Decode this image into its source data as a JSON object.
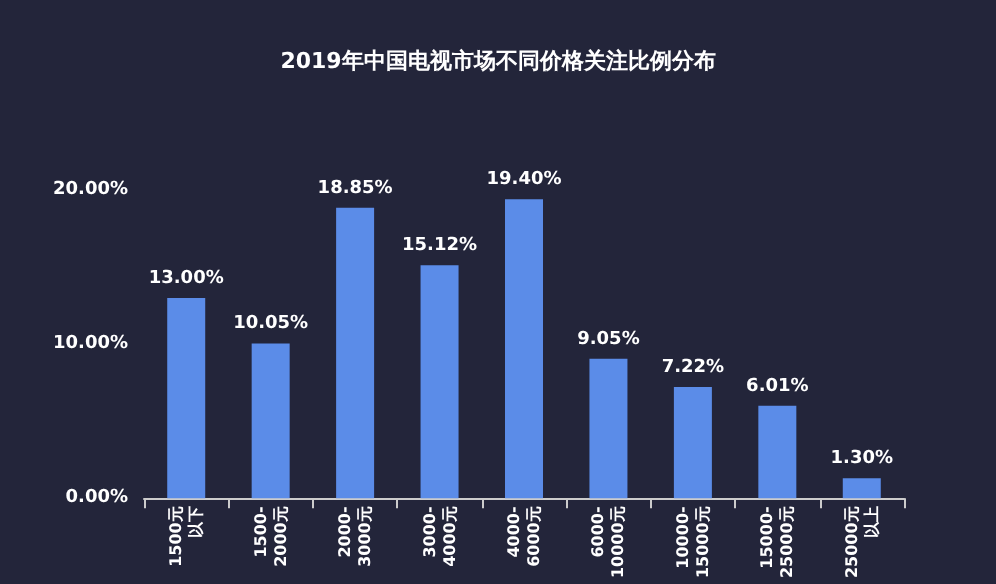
{
  "chart_data": {
    "type": "bar",
    "title": "2019年中国电视市场不同价格关注比例分布",
    "categories": [
      "1500元以下",
      "1500-2000元",
      "2000-3000元",
      "3000-4000元",
      "4000-6000元",
      "6000-10000元",
      "10000-15000元",
      "15000-25000元",
      "25000元以上"
    ],
    "values": [
      13.0,
      10.05,
      18.85,
      15.12,
      19.4,
      9.05,
      7.22,
      6.01,
      1.3
    ],
    "value_labels": [
      "13.00%",
      "10.05%",
      "18.85%",
      "15.12%",
      "19.40%",
      "9.05%",
      "7.22%",
      "6.01%",
      "1.30%"
    ],
    "color": "#5b8ce8",
    "ylim": [
      0,
      20
    ],
    "yticks": [
      {
        "value": 0,
        "label": "0.00%"
      },
      {
        "value": 10,
        "label": "10.00%"
      },
      {
        "value": 20,
        "label": "20.00%"
      }
    ],
    "grid": false
  }
}
